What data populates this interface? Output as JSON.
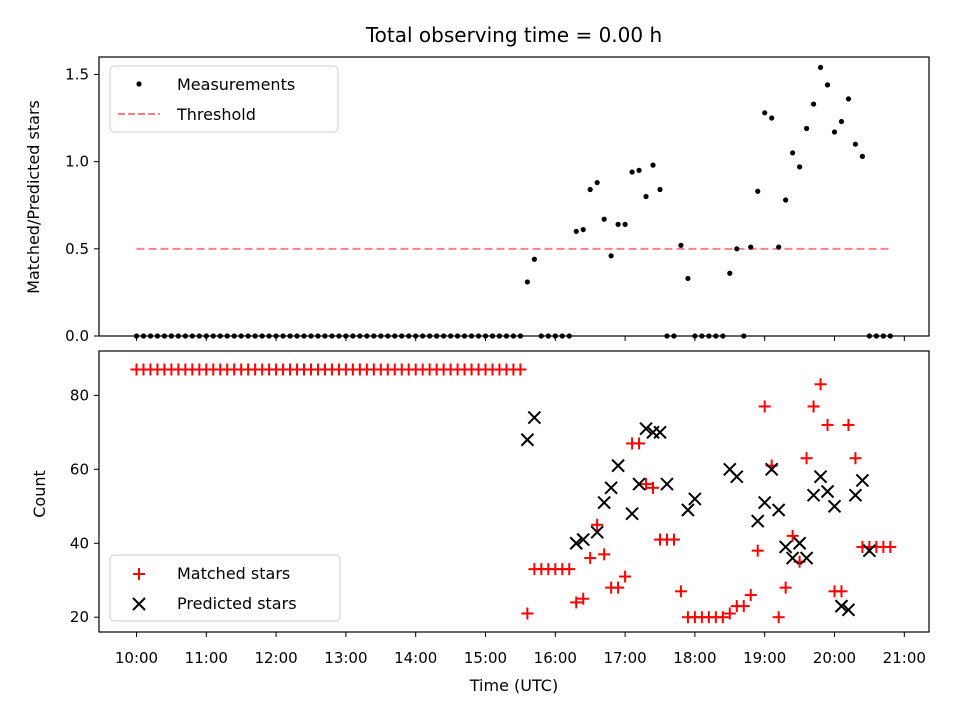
{
  "chart_data": [
    {
      "type": "scatter",
      "title": "Total observing time = 0.00 h",
      "ylabel": "Matched/Predicted stars",
      "xlabel": "",
      "ylim": [
        0,
        1.6
      ],
      "yticks": [
        "0.0",
        "0.5",
        "1.0",
        "1.5"
      ],
      "legend": {
        "placement": "top-left",
        "entries": [
          "Measurements",
          "Threshold"
        ]
      },
      "threshold": {
        "name": "Threshold",
        "value": 0.5,
        "x_start": "10:00",
        "x_end": "20:48",
        "color": "#ff8080",
        "style": "dashed"
      },
      "series": [
        {
          "name": "Measurements",
          "color": "#000000",
          "marker": "dot",
          "x": [
            "10:00",
            "10:06",
            "10:12",
            "10:18",
            "10:24",
            "10:30",
            "10:36",
            "10:42",
            "10:48",
            "10:54",
            "11:00",
            "11:06",
            "11:12",
            "11:18",
            "11:24",
            "11:30",
            "11:36",
            "11:42",
            "11:48",
            "11:54",
            "12:00",
            "12:06",
            "12:12",
            "12:18",
            "12:24",
            "12:30",
            "12:36",
            "12:42",
            "12:48",
            "12:54",
            "13:00",
            "13:06",
            "13:12",
            "13:18",
            "13:24",
            "13:30",
            "13:36",
            "13:42",
            "13:48",
            "13:54",
            "14:00",
            "14:06",
            "14:12",
            "14:18",
            "14:24",
            "14:30",
            "14:36",
            "14:42",
            "14:48",
            "14:54",
            "15:00",
            "15:06",
            "15:12",
            "15:18",
            "15:24",
            "15:30",
            "15:36",
            "15:42",
            "15:48",
            "15:54",
            "16:00",
            "16:06",
            "16:12",
            "16:18",
            "16:24",
            "16:30",
            "16:36",
            "16:42",
            "16:48",
            "16:54",
            "17:00",
            "17:06",
            "17:12",
            "17:18",
            "17:24",
            "17:30",
            "17:36",
            "17:42",
            "17:48",
            "17:54",
            "18:00",
            "18:06",
            "18:12",
            "18:18",
            "18:24",
            "18:30",
            "18:36",
            "18:42",
            "18:48",
            "18:54",
            "19:00",
            "19:06",
            "19:12",
            "19:18",
            "19:24",
            "19:30",
            "19:36",
            "19:42",
            "19:48",
            "19:54",
            "20:00",
            "20:06",
            "20:12",
            "20:18",
            "20:24",
            "20:30",
            "20:36",
            "20:42",
            "20:48"
          ],
          "y": [
            0,
            0,
            0,
            0,
            0,
            0,
            0,
            0,
            0,
            0,
            0,
            0,
            0,
            0,
            0,
            0,
            0,
            0,
            0,
            0,
            0,
            0,
            0,
            0,
            0,
            0,
            0,
            0,
            0,
            0,
            0,
            0,
            0,
            0,
            0,
            0,
            0,
            0,
            0,
            0,
            0,
            0,
            0,
            0,
            0,
            0,
            0,
            0,
            0,
            0,
            0,
            0,
            0,
            0,
            0,
            0,
            0.31,
            0.44,
            0,
            0,
            0,
            0,
            0,
            0.6,
            0.61,
            0.84,
            0.88,
            0.67,
            0.46,
            0.64,
            0.64,
            0.94,
            0.95,
            0.8,
            0.98,
            0.84,
            0,
            0,
            0.52,
            0.33,
            0,
            0,
            0,
            0,
            0,
            0.36,
            0.5,
            0,
            0.51,
            0.83,
            1.28,
            1.25,
            0.51,
            0.78,
            1.05,
            0.97,
            1.19,
            1.33,
            1.54,
            1.44,
            1.17,
            1.23,
            1.36,
            1.1,
            1.03,
            0,
            0,
            0,
            0
          ]
        }
      ]
    },
    {
      "type": "scatter",
      "title": "",
      "ylabel": "Count",
      "xlabel": "Time (UTC)",
      "ylim": [
        16,
        92
      ],
      "yticks": [
        "20",
        "40",
        "60",
        "80"
      ],
      "xticks": [
        "10:00",
        "11:00",
        "12:00",
        "13:00",
        "14:00",
        "15:00",
        "16:00",
        "17:00",
        "18:00",
        "19:00",
        "20:00",
        "21:00"
      ],
      "legend": {
        "placement": "bottom-left",
        "entries": [
          "Matched stars",
          "Predicted stars"
        ]
      },
      "series": [
        {
          "name": "Matched stars",
          "color": "#ff0000",
          "marker": "plus",
          "x": [
            "10:00",
            "10:06",
            "10:12",
            "10:18",
            "10:24",
            "10:30",
            "10:36",
            "10:42",
            "10:48",
            "10:54",
            "11:00",
            "11:06",
            "11:12",
            "11:18",
            "11:24",
            "11:30",
            "11:36",
            "11:42",
            "11:48",
            "11:54",
            "12:00",
            "12:06",
            "12:12",
            "12:18",
            "12:24",
            "12:30",
            "12:36",
            "12:42",
            "12:48",
            "12:54",
            "13:00",
            "13:06",
            "13:12",
            "13:18",
            "13:24",
            "13:30",
            "13:36",
            "13:42",
            "13:48",
            "13:54",
            "14:00",
            "14:06",
            "14:12",
            "14:18",
            "14:24",
            "14:30",
            "14:36",
            "14:42",
            "14:48",
            "14:54",
            "15:00",
            "15:06",
            "15:12",
            "15:18",
            "15:24",
            "15:30",
            "15:36",
            "15:42",
            "15:48",
            "15:54",
            "16:00",
            "16:06",
            "16:12",
            "16:18",
            "16:24",
            "16:30",
            "16:36",
            "16:42",
            "16:48",
            "16:54",
            "17:00",
            "17:06",
            "17:12",
            "17:18",
            "17:24",
            "17:30",
            "17:36",
            "17:42",
            "17:48",
            "17:54",
            "18:00",
            "18:06",
            "18:12",
            "18:18",
            "18:24",
            "18:30",
            "18:36",
            "18:42",
            "18:48",
            "18:54",
            "19:00",
            "19:06",
            "19:12",
            "19:18",
            "19:24",
            "19:30",
            "19:36",
            "19:42",
            "19:48",
            "19:54",
            "20:00",
            "20:06",
            "20:12",
            "20:18",
            "20:24",
            "20:30",
            "20:36",
            "20:42",
            "20:48"
          ],
          "y": [
            87,
            87,
            87,
            87,
            87,
            87,
            87,
            87,
            87,
            87,
            87,
            87,
            87,
            87,
            87,
            87,
            87,
            87,
            87,
            87,
            87,
            87,
            87,
            87,
            87,
            87,
            87,
            87,
            87,
            87,
            87,
            87,
            87,
            87,
            87,
            87,
            87,
            87,
            87,
            87,
            87,
            87,
            87,
            87,
            87,
            87,
            87,
            87,
            87,
            87,
            87,
            87,
            87,
            87,
            87,
            87,
            21,
            33,
            33,
            33,
            33,
            33,
            33,
            24,
            25,
            36,
            45,
            37,
            28,
            28,
            31,
            67,
            67,
            56,
            55,
            41,
            41,
            41,
            27,
            20,
            20,
            20,
            20,
            20,
            20,
            21,
            23,
            23,
            26,
            38,
            77,
            61,
            20,
            28,
            42,
            35,
            63,
            77,
            83,
            72,
            27,
            27,
            72,
            63,
            39,
            39,
            39,
            39,
            39
          ]
        },
        {
          "name": "Predicted stars",
          "color": "#000000",
          "marker": "x",
          "x": [
            "15:36",
            "15:42",
            "16:18",
            "16:24",
            "16:36",
            "16:42",
            "16:48",
            "16:54",
            "17:06",
            "17:12",
            "17:18",
            "17:24",
            "17:30",
            "17:36",
            "17:54",
            "18:00",
            "18:30",
            "18:36",
            "18:54",
            "19:00",
            "19:06",
            "19:12",
            "19:18",
            "19:24",
            "19:30",
            "19:36",
            "19:42",
            "19:48",
            "19:54",
            "20:00",
            "20:06",
            "20:12",
            "20:18",
            "20:24",
            "20:30"
          ],
          "y": [
            68,
            74,
            40,
            41,
            43,
            51,
            55,
            61,
            48,
            56,
            71,
            70,
            70,
            56,
            49,
            52,
            60,
            58,
            46,
            51,
            60,
            49,
            39,
            36,
            40,
            36,
            53,
            58,
            54,
            50,
            23,
            22,
            53,
            57,
            38
          ]
        }
      ]
    }
  ]
}
